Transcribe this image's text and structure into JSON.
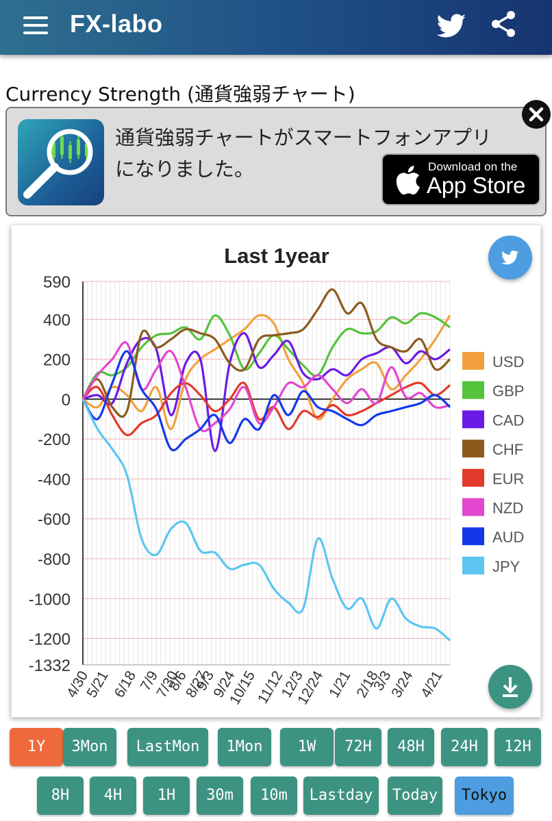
{
  "header": {
    "title": "FX-labo",
    "menu_icon": "hamburger-menu-icon",
    "twitter_icon": "twitter-bird-icon",
    "share_icon": "share-icon"
  },
  "page": {
    "heading": "Currency Strength (通貨強弱チャート)"
  },
  "banner": {
    "line1": "通貨強弱チャートがスマートフォンアプリ",
    "line2": "になりました。",
    "appstore_small": "Download on the",
    "appstore_big": "App Store",
    "close_icon": "close-icon"
  },
  "chart_data": {
    "type": "line",
    "title": "Last 1year",
    "ylim": [
      -1332,
      590
    ],
    "yticks": [
      "590",
      "400",
      "200",
      "0",
      "-200",
      "-400",
      "-600",
      "-800",
      "-1000",
      "-1200",
      "-1332"
    ],
    "ytick_values": [
      590,
      400,
      200,
      0,
      -200,
      -400,
      -600,
      -800,
      -1000,
      -1200,
      -1332
    ],
    "xticks": [
      "4/30",
      "5/21",
      "6/18",
      "7/9",
      "7/30",
      "8/6",
      "8/27",
      "9/3",
      "9/24",
      "10/15",
      "11/12",
      "12/3",
      "12/24",
      "1/21",
      "2/18",
      "3/3",
      "3/24",
      "4/21"
    ],
    "xtick_positions": [
      0,
      0.055,
      0.13,
      0.19,
      0.245,
      0.268,
      0.325,
      0.343,
      0.4,
      0.455,
      0.53,
      0.585,
      0.64,
      0.715,
      0.79,
      0.825,
      0.885,
      0.965
    ],
    "grid": true,
    "legend_position": "right",
    "x": [
      0,
      0.04,
      0.08,
      0.12,
      0.16,
      0.2,
      0.24,
      0.28,
      0.32,
      0.36,
      0.4,
      0.44,
      0.48,
      0.52,
      0.56,
      0.6,
      0.64,
      0.68,
      0.72,
      0.76,
      0.8,
      0.84,
      0.88,
      0.92,
      0.96,
      1.0
    ],
    "series": [
      {
        "name": "USD",
        "color": "#f2a03d",
        "values": [
          0,
          -40,
          60,
          20,
          -60,
          60,
          -150,
          100,
          200,
          250,
          300,
          350,
          420,
          380,
          200,
          80,
          -100,
          0,
          100,
          150,
          180,
          50,
          120,
          200,
          300,
          420
        ]
      },
      {
        "name": "GBP",
        "color": "#55c33c",
        "values": [
          0,
          130,
          120,
          160,
          260,
          320,
          330,
          360,
          300,
          420,
          320,
          150,
          230,
          320,
          250,
          170,
          120,
          260,
          350,
          330,
          340,
          410,
          380,
          430,
          410,
          360
        ]
      },
      {
        "name": "CAD",
        "color": "#6a1be6",
        "values": [
          0,
          20,
          -20,
          180,
          300,
          250,
          -80,
          180,
          200,
          -260,
          180,
          330,
          160,
          220,
          290,
          130,
          100,
          150,
          120,
          200,
          230,
          260,
          180,
          240,
          200,
          250
        ]
      },
      {
        "name": "CHF",
        "color": "#8b5b1e",
        "values": [
          0,
          100,
          -40,
          -60,
          330,
          260,
          300,
          350,
          330,
          300,
          180,
          150,
          300,
          320,
          330,
          350,
          450,
          550,
          430,
          480,
          300,
          260,
          240,
          300,
          150,
          200
        ]
      },
      {
        "name": "EUR",
        "color": "#e23a2a",
        "values": [
          0,
          60,
          -80,
          -180,
          -120,
          -80,
          30,
          80,
          20,
          -60,
          0,
          80,
          -100,
          -40,
          -150,
          -60,
          -90,
          -30,
          -80,
          -60,
          -20,
          20,
          60,
          80,
          20,
          70
        ]
      },
      {
        "name": "NZD",
        "color": "#e347cf",
        "values": [
          0,
          120,
          200,
          280,
          50,
          150,
          240,
          60,
          -150,
          -120,
          -50,
          60,
          -120,
          -40,
          80,
          60,
          120,
          50,
          -20,
          50,
          -20,
          160,
          10,
          30,
          -40,
          -30
        ]
      },
      {
        "name": "AUD",
        "color": "#1338ea",
        "values": [
          0,
          -100,
          80,
          240,
          50,
          -50,
          -250,
          -200,
          -150,
          -80,
          -220,
          -100,
          -150,
          20,
          -80,
          40,
          -40,
          -60,
          -100,
          -130,
          -80,
          -60,
          -40,
          -20,
          20,
          -40
        ]
      },
      {
        "name": "JPY",
        "color": "#5cc6f0",
        "values": [
          0,
          -150,
          -250,
          -380,
          -700,
          -780,
          -650,
          -620,
          -760,
          -770,
          -850,
          -830,
          -830,
          -950,
          -1020,
          -1050,
          -700,
          -900,
          -1050,
          -1000,
          -1150,
          -1000,
          -1100,
          -1140,
          -1150,
          -1210
        ]
      }
    ]
  },
  "chart_ui": {
    "twitter_icon": "twitter-bird-icon",
    "download_icon": "download-icon"
  },
  "timeframes": {
    "row1": [
      {
        "label": "1Y",
        "active": true
      },
      {
        "label": "3Mon"
      },
      {
        "label": "LastMon"
      },
      {
        "label": "1Mon"
      },
      {
        "label": "1W"
      },
      {
        "label": "72H"
      },
      {
        "label": "48H"
      },
      {
        "label": "24H"
      },
      {
        "label": "12H"
      }
    ],
    "row2": [
      {
        "label": "8H"
      },
      {
        "label": "4H"
      },
      {
        "label": "1H"
      },
      {
        "label": "30m"
      },
      {
        "label": "10m"
      },
      {
        "label": "Lastday"
      },
      {
        "label": "Today"
      },
      {
        "label": "Tokyo",
        "selected": true
      }
    ]
  },
  "colors": {
    "button_default": "#3d9381",
    "button_active": "#ee6a3c",
    "button_selected": "#4d9de0",
    "fab_twitter": "#4d9de0",
    "fab_download": "#3d9381"
  }
}
